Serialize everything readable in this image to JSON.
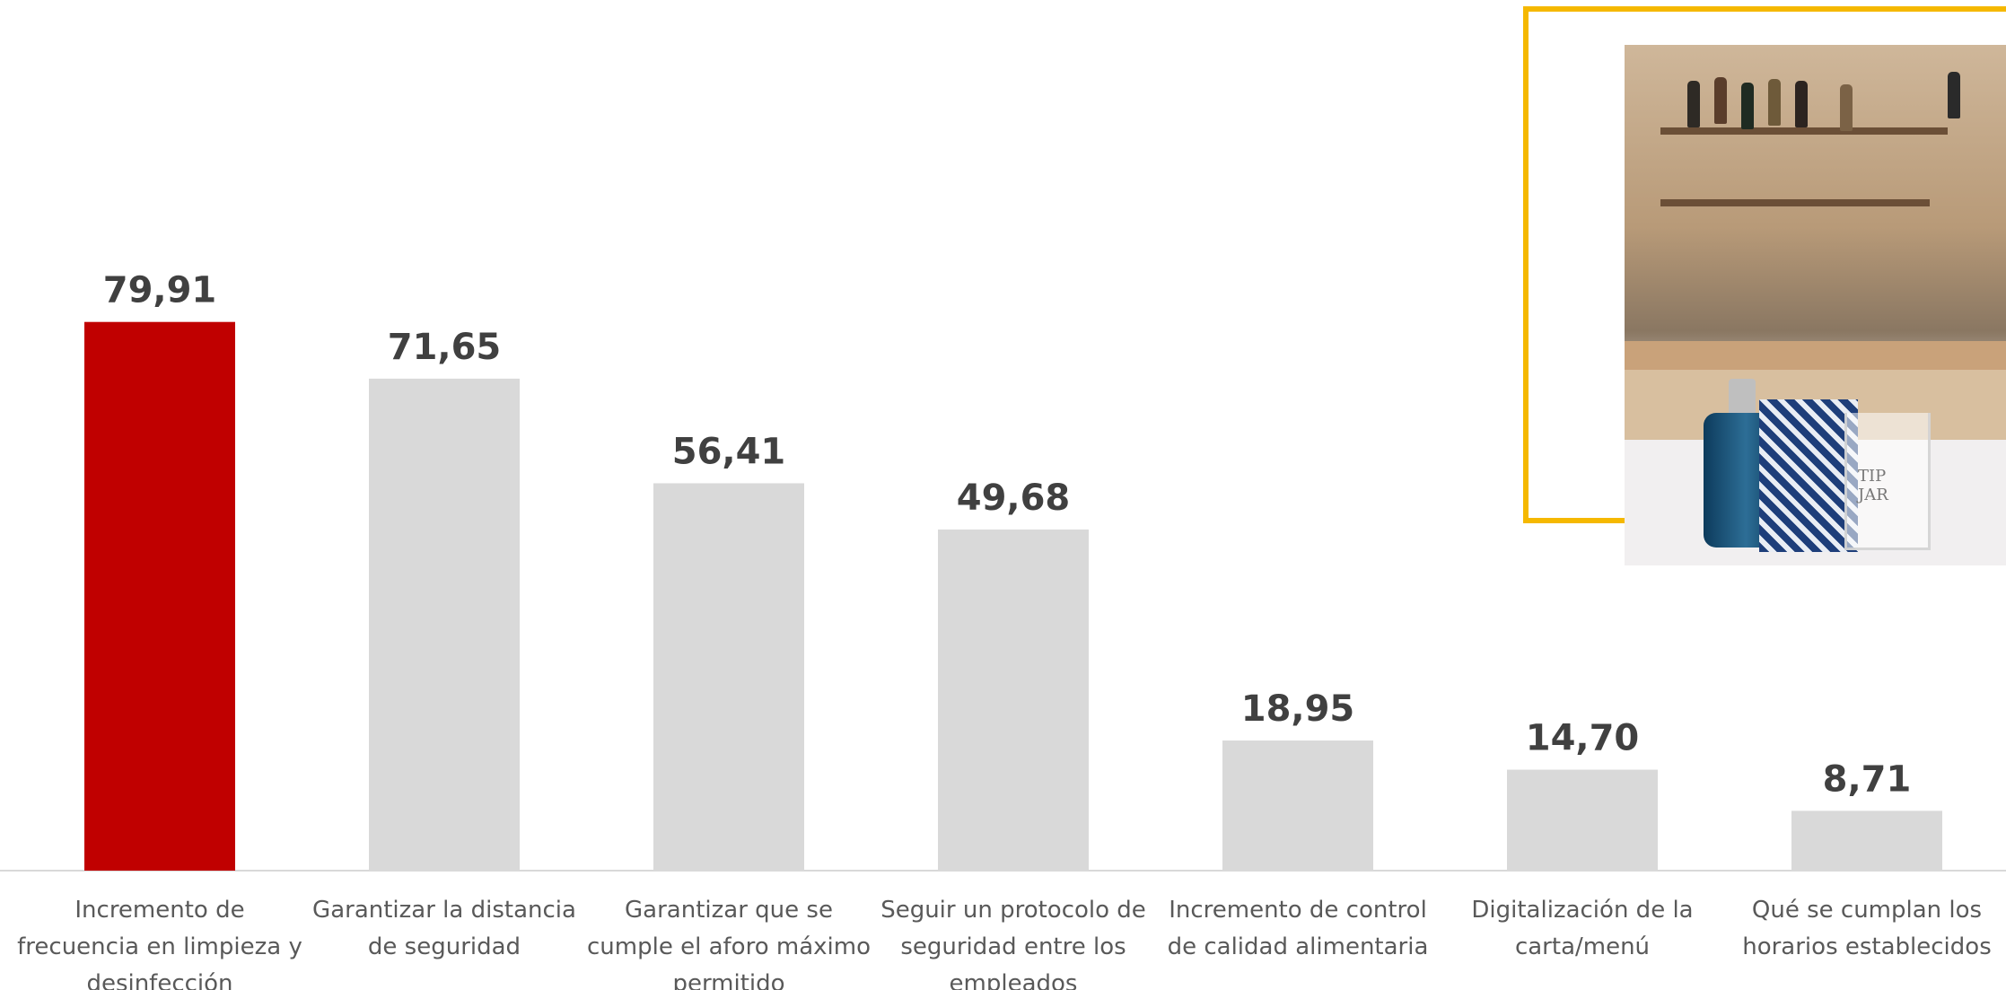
{
  "chart_data": {
    "type": "bar",
    "categories": [
      "Incremento de frecuencia en limpieza y desinfección",
      "Garantizar la distancia de seguridad",
      "Garantizar que se cumple el aforo máximo permitido",
      "Seguir un protocolo de seguridad entre los empleados",
      "Incremento de control de calidad alimentaria",
      "Digitalización de la carta/menú",
      "Qué se cumplan los horarios establecidos"
    ],
    "category_lines": [
      [
        "Incremento de",
        "frecuencia en limpieza y",
        "desinfección"
      ],
      [
        "Garantizar la distancia",
        "de seguridad"
      ],
      [
        "Garantizar que se",
        "cumple el aforo máximo",
        "permitido"
      ],
      [
        "Seguir un protocolo de",
        "seguridad entre los",
        "empleados"
      ],
      [
        "Incremento de control",
        "de calidad alimentaria"
      ],
      [
        "Digitalización de la",
        "carta/menú"
      ],
      [
        "Qué se cumplan los",
        "horarios establecidos"
      ]
    ],
    "values": [
      79.91,
      71.65,
      56.41,
      49.68,
      18.95,
      14.7,
      8.71
    ],
    "value_labels": [
      "79,91",
      "71,65",
      "56,41",
      "49,68",
      "18,95",
      "14,70",
      "8,71"
    ],
    "colors": [
      "#c00000",
      "#d9d9d9",
      "#d9d9d9",
      "#d9d9d9",
      "#d9d9d9",
      "#d9d9d9",
      "#d9d9d9"
    ],
    "title": "",
    "xlabel": "",
    "ylabel": "",
    "ylim": [
      0,
      80
    ],
    "grid": false,
    "legend": "none"
  },
  "colors": {
    "highlight": "#c00000",
    "bar": "#d9d9d9",
    "frame_accent": "#f5b800",
    "axis": "#d9d9d9",
    "value_text": "#404040",
    "label_text": "#595959"
  }
}
